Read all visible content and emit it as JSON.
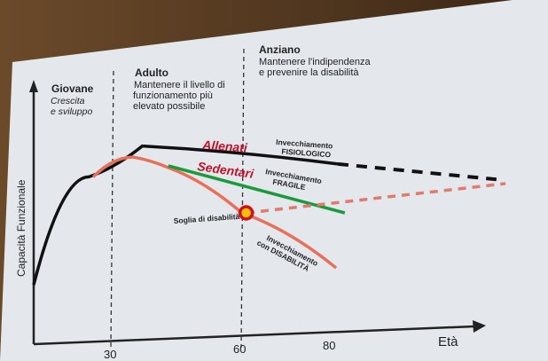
{
  "chart_data": {
    "type": "line",
    "xlabel": "Età",
    "ylabel": "Capacità Funzionale",
    "x_ticks": [
      30,
      60,
      80
    ],
    "xlim": [
      12,
      122
    ],
    "ylim": [
      0,
      100
    ],
    "grid": false,
    "phases": [
      {
        "x": 12,
        "title": "Giovane",
        "subtitle": "Crescita\ne sviluppo"
      },
      {
        "x": 30,
        "title": "Adulto",
        "subtitle": "Mantenere il livello di\nfunzionamento più\nelevato possibile"
      },
      {
        "x": 60,
        "title": "Anziano",
        "subtitle": "Mantenere l'indipendenza\ne prevenire la disabilità"
      }
    ],
    "series": [
      {
        "name": "Allenati",
        "color": "#111111",
        "style": "solid",
        "points": [
          [
            12,
            22
          ],
          [
            24.7,
            64
          ],
          [
            37,
            76
          ],
          [
            82,
            69
          ]
        ]
      },
      {
        "name": "Allenati",
        "color": "#111111",
        "style": "dashed",
        "points": [
          [
            82,
            69
          ],
          [
            118.5,
            63
          ]
        ]
      },
      {
        "name": "Sedentari",
        "color": "#e8705a",
        "style": "solid",
        "points": [
          [
            25.7,
            64
          ],
          [
            34.9,
            71.7
          ],
          [
            43,
            67.6
          ],
          [
            59.9,
            50
          ],
          [
            81.6,
            28.6
          ]
        ]
      },
      {
        "name": "Sedentari",
        "color": "#1a9a3a",
        "style": "solid",
        "points": [
          [
            43,
            68.3
          ],
          [
            83.6,
            50
          ]
        ]
      },
      {
        "name": "",
        "color": "#e07a6a",
        "style": "dashed",
        "points": [
          [
            61,
            50
          ],
          [
            120.6,
            61.4
          ]
        ]
      }
    ],
    "annotations": {
      "allenati": "Allenati",
      "sedentari": "Sedentari",
      "fisiologico": [
        "Invecchiamento",
        "FISIOLOGICO"
      ],
      "fragile": [
        "Invecchiamento",
        "FRAGILE"
      ],
      "disabilita": [
        "Invecchiamento",
        "con DISABILITÀ"
      ],
      "soglia": "Soglia di disabilità",
      "threshold_point": [
        60.9,
        50
      ]
    },
    "colors": {
      "label_red": "#c0102a",
      "point_fill": "#f2c200",
      "point_ring": "#d01020"
    }
  }
}
